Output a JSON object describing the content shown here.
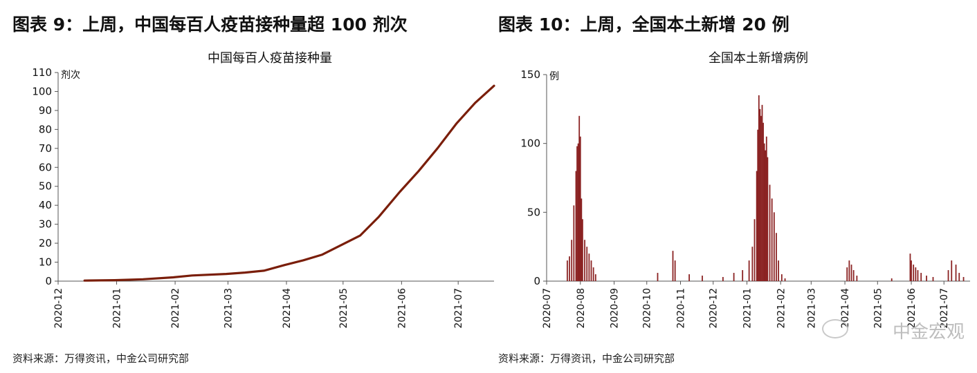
{
  "left": {
    "heading": "图表 9：上周，中国每百人疫苗接种量超 100 剂次",
    "source": "资料来源：万得资讯，中金公司研究部",
    "chart_data": {
      "type": "line",
      "title": "中国每百人疫苗接种量",
      "ylabel": "剂次",
      "xlabel": "",
      "ylim": [
        0,
        110
      ],
      "yticks": [
        0,
        10,
        20,
        30,
        40,
        50,
        60,
        70,
        80,
        90,
        100,
        110
      ],
      "xticks": [
        "2020-12",
        "2021-01",
        "2021-02",
        "2021-03",
        "2021-04",
        "2021-05",
        "2021-06",
        "2021-07"
      ],
      "xlim": [
        "2020-12-01",
        "2021-07-20"
      ],
      "color": "#7a1e0a",
      "series": [
        {
          "x": [
            "2020-12-15",
            "2020-12-31",
            "2021-01-15",
            "2021-01-31",
            "2021-02-10",
            "2021-02-28",
            "2021-03-10",
            "2021-03-20",
            "2021-03-31",
            "2021-04-10",
            "2021-04-20",
            "2021-04-30",
            "2021-05-10",
            "2021-05-20",
            "2021-05-31",
            "2021-06-10",
            "2021-06-20",
            "2021-06-30",
            "2021-07-10",
            "2021-07-20"
          ],
          "values": [
            0.3,
            0.5,
            1,
            2,
            3,
            3.8,
            4.5,
            5.5,
            8.5,
            11,
            14,
            19,
            24,
            34,
            47,
            58,
            70,
            83,
            94,
            103
          ]
        }
      ]
    }
  },
  "right": {
    "heading": "图表 10：上周，全国本土新增 20 例",
    "source": "资料来源：万得资讯，中金公司研究部",
    "watermark": "中金宏观",
    "chart_data": {
      "type": "bar",
      "title": "全国本土新增病例",
      "ylabel": "例",
      "xlabel": "",
      "ylim": [
        0,
        150
      ],
      "yticks": [
        0,
        50,
        100,
        150
      ],
      "xticks": [
        "2020-07",
        "2020-08",
        "2020-09",
        "2020-10",
        "2020-11",
        "2020-12",
        "2021-01",
        "2021-02",
        "2021-03",
        "2021-04",
        "2021-05",
        "2021-06",
        "2021-07"
      ],
      "xlim": [
        "2020-07-01",
        "2021-07-25"
      ],
      "color": "#8b2323",
      "series": [
        {
          "x": [
            "2020-07-20",
            "2020-07-22",
            "2020-07-24",
            "2020-07-26",
            "2020-07-28",
            "2020-07-29",
            "2020-07-30",
            "2020-07-31",
            "2020-08-01",
            "2020-08-02",
            "2020-08-03",
            "2020-08-05",
            "2020-08-07",
            "2020-08-09",
            "2020-08-11",
            "2020-08-13",
            "2020-08-15",
            "2020-10-11",
            "2020-10-25",
            "2020-10-27",
            "2020-11-09",
            "2020-11-21",
            "2020-12-10",
            "2020-12-20",
            "2020-12-28",
            "2021-01-03",
            "2021-01-06",
            "2021-01-08",
            "2021-01-10",
            "2021-01-11",
            "2021-01-12",
            "2021-01-13",
            "2021-01-14",
            "2021-01-15",
            "2021-01-16",
            "2021-01-17",
            "2021-01-18",
            "2021-01-19",
            "2021-01-20",
            "2021-01-22",
            "2021-01-24",
            "2021-01-26",
            "2021-01-28",
            "2021-01-30",
            "2021-02-02",
            "2021-02-05",
            "2021-04-03",
            "2021-04-05",
            "2021-04-07",
            "2021-04-09",
            "2021-04-12",
            "2021-05-14",
            "2021-05-31",
            "2021-06-01",
            "2021-06-03",
            "2021-06-05",
            "2021-06-07",
            "2021-06-10",
            "2021-06-15",
            "2021-06-21",
            "2021-07-05",
            "2021-07-08",
            "2021-07-12",
            "2021-07-15",
            "2021-07-19"
          ],
          "values": [
            15,
            18,
            30,
            55,
            80,
            98,
            100,
            120,
            105,
            60,
            45,
            30,
            25,
            20,
            15,
            10,
            5,
            6,
            22,
            15,
            5,
            4,
            3,
            6,
            8,
            15,
            25,
            45,
            80,
            110,
            135,
            125,
            120,
            128,
            115,
            100,
            95,
            105,
            90,
            70,
            60,
            50,
            35,
            15,
            5,
            2,
            10,
            15,
            12,
            8,
            4,
            2,
            20,
            15,
            12,
            10,
            8,
            6,
            4,
            3,
            8,
            15,
            12,
            6,
            3
          ]
        }
      ]
    }
  }
}
